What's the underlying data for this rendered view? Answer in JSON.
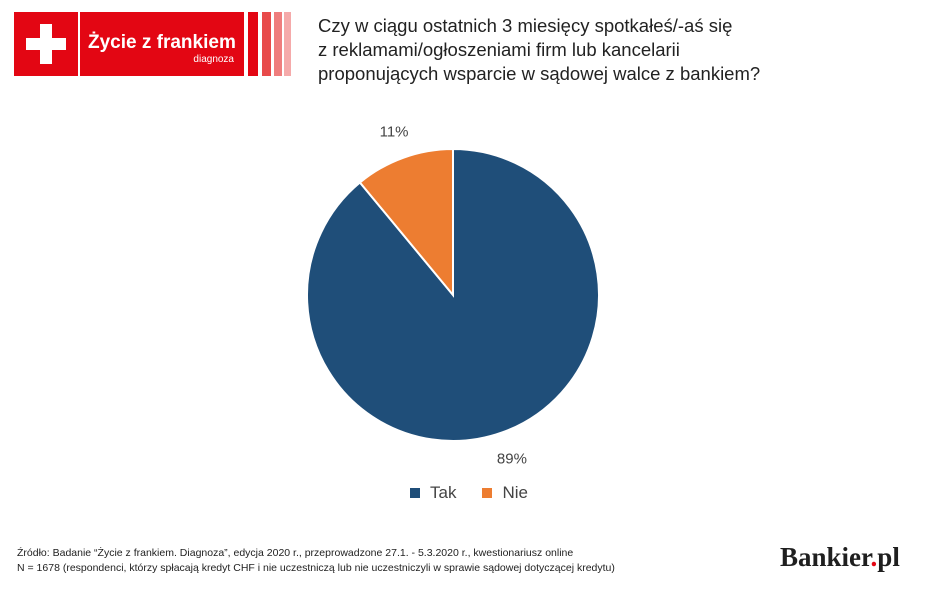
{
  "logo": {
    "name": "Życie z frankiem",
    "subtitle": "diagnoza",
    "brand_color": "#e30613",
    "stripe_colors": [
      "#e30613",
      "#e84a4a",
      "#ef7d7d",
      "#f5aaaa"
    ]
  },
  "chart_data": {
    "type": "pie",
    "title_lines": [
      "Czy w ciągu ostatnich 3 miesięcy spotkałeś/-aś się",
      "z reklamami/ogłoszeniami firm lub kancelarii",
      "proponujących wsparcie w sądowej walce z bankiem?"
    ],
    "slices": [
      {
        "label": "Tak",
        "value": 89,
        "display": "89%",
        "color": "#1f4e79"
      },
      {
        "label": "Nie",
        "value": 11,
        "display": "11%",
        "color": "#ed7d31"
      }
    ],
    "legend_position": "bottom"
  },
  "footer": {
    "source": "Źródło: Badanie “Życie z frankiem. Diagnoza”, edycja 2020 r., przeprowadzone 27.1. - 5.3.2020 r., kwestionariusz online",
    "note": "N = 1678 (respondenci, którzy spłacają kredyt CHF i nie uczestniczą lub nie uczestniczyli w sprawie sądowej dotyczącej kredytu)",
    "brand_main": "Bankier",
    "brand_dot": ".",
    "brand_tld": "pl"
  }
}
